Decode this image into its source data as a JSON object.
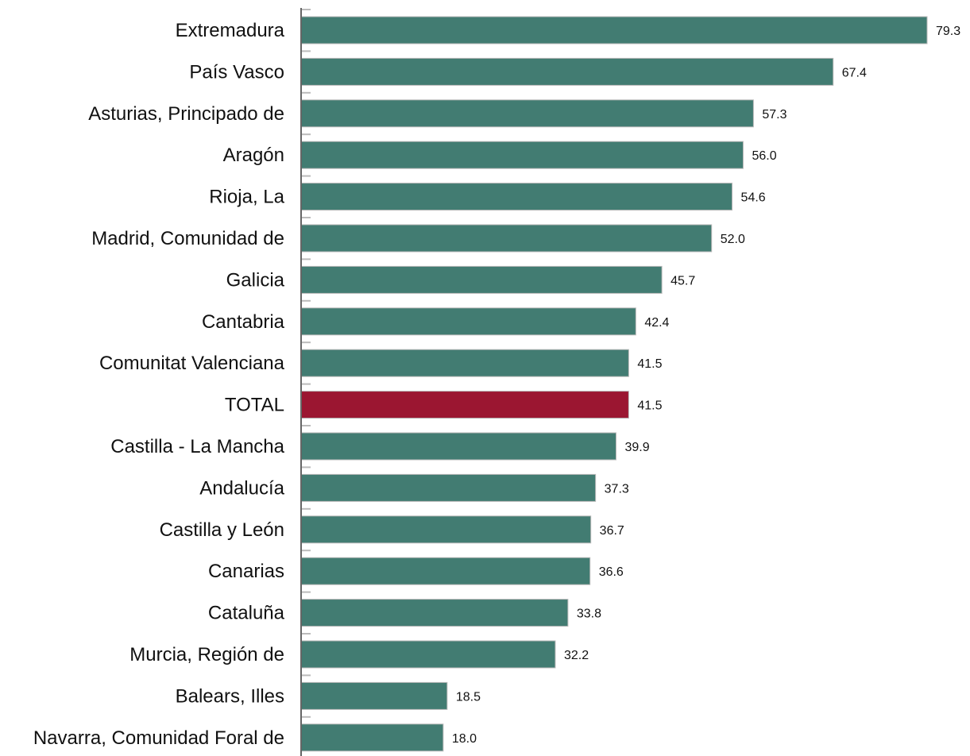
{
  "chart_data": {
    "type": "bar",
    "orientation": "horizontal",
    "categories": [
      "Extremadura",
      "País Vasco",
      "Asturias, Principado de",
      "Aragón",
      "Rioja, La",
      "Madrid, Comunidad de",
      "Galicia",
      "Cantabria",
      "Comunitat Valenciana",
      "TOTAL",
      "Castilla - La Mancha",
      "Andalucía",
      "Castilla y León",
      "Canarias",
      "Cataluña",
      "Murcia, Región de",
      "Balears, Illes",
      "Navarra, Comunidad Foral de"
    ],
    "values": [
      79.3,
      67.4,
      57.3,
      56.0,
      54.6,
      52.0,
      45.7,
      42.4,
      41.5,
      41.5,
      39.9,
      37.3,
      36.7,
      36.6,
      33.8,
      32.2,
      18.5,
      18.0
    ],
    "value_labels": [
      "79.3",
      "67.4",
      "57.3",
      "56.0",
      "54.6",
      "52.0",
      "45.7",
      "42.4",
      "41.5",
      "41.5",
      "39.9",
      "37.3",
      "36.7",
      "36.6",
      "33.8",
      "32.2",
      "18.5",
      "18.0"
    ],
    "highlight_category": "TOTAL",
    "xlim": [
      0,
      79.3
    ],
    "title": "",
    "xlabel": "",
    "ylabel": "",
    "grid": false,
    "legend": "none"
  },
  "colors": {
    "bar": "#427c72",
    "highlight": "#9b1631",
    "axis": "#666666",
    "text": "#111111"
  }
}
